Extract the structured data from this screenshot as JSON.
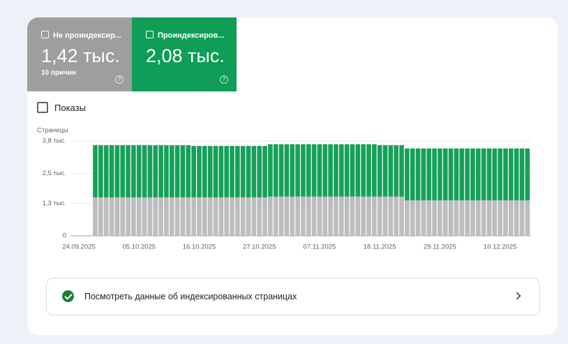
{
  "cards": [
    {
      "value": "1,42 тыс.",
      "note": "10 причин"
    },
    {
      "value": "2,08 тыс."
    }
  ],
  "toggle": "Показы",
  "link": "Посмотреть данные об индексированных страницах",
  "chart_data": {
    "type": "stacked-bar",
    "y_label": "Страницы",
    "categories": [
      "24.09.2025",
      null,
      null,
      null,
      null,
      null,
      null,
      null,
      null,
      null,
      null,
      "05.10.2025",
      null,
      null,
      null,
      null,
      null,
      null,
      null,
      null,
      null,
      null,
      "16.10.2025",
      null,
      null,
      null,
      null,
      null,
      null,
      null,
      null,
      null,
      null,
      "27.10.2025",
      null,
      null,
      null,
      null,
      null,
      null,
      null,
      null,
      null,
      null,
      "07.11.2025",
      null,
      null,
      null,
      null,
      null,
      null,
      null,
      null,
      null,
      null,
      "18.11.2025",
      null,
      null,
      null,
      null,
      null,
      null,
      null,
      null,
      null,
      null,
      "29.11.2025",
      null,
      null,
      null,
      null,
      null,
      null,
      null,
      null,
      null,
      null,
      "10.12.2025",
      null,
      null,
      null,
      null,
      null
    ],
    "series": [
      {
        "name": "Не проиндексир...",
        "color": "#bdbdbd",
        "values": [
          null,
          null,
          null,
          1540,
          1540,
          1540,
          1540,
          1540,
          1540,
          1540,
          1540,
          1540,
          1540,
          1540,
          1540,
          1540,
          1540,
          1540,
          1540,
          1540,
          1540,
          1540,
          1540,
          1540,
          1540,
          1540,
          1540,
          1540,
          1540,
          1540,
          1540,
          1540,
          1540,
          1540,
          1540,
          1570,
          1570,
          1570,
          1570,
          1570,
          1570,
          1570,
          1570,
          1570,
          1570,
          1570,
          1570,
          1570,
          1570,
          1570,
          1570,
          1570,
          1570,
          1570,
          1570,
          1570,
          1570,
          1570,
          1570,
          1570,
          1420,
          1420,
          1420,
          1420,
          1420,
          1420,
          1420,
          1420,
          1420,
          1420,
          1420,
          1420,
          1420,
          1420,
          1420,
          1420,
          1420,
          1420,
          1420,
          1420,
          1420,
          1420,
          1420
        ]
      },
      {
        "name": "Проиндексиров...",
        "color": "#17a05a",
        "values": [
          null,
          null,
          null,
          2090,
          2090,
          2090,
          2090,
          2090,
          2090,
          2090,
          2090,
          2090,
          2090,
          2090,
          2090,
          2090,
          2090,
          2090,
          2090,
          2090,
          2090,
          2060,
          2060,
          2060,
          2060,
          2060,
          2060,
          2060,
          2060,
          2060,
          2060,
          2060,
          2060,
          2060,
          2060,
          2100,
          2100,
          2100,
          2100,
          2100,
          2100,
          2100,
          2100,
          2100,
          2100,
          2100,
          2100,
          2100,
          2100,
          2100,
          2100,
          2100,
          2100,
          2100,
          2100,
          2060,
          2060,
          2060,
          2060,
          2060,
          2080,
          2080,
          2080,
          2080,
          2080,
          2080,
          2080,
          2080,
          2080,
          2080,
          2080,
          2080,
          2080,
          2080,
          2080,
          2080,
          2080,
          2080,
          2080,
          2080,
          2080,
          2080,
          2080
        ]
      }
    ],
    "ylim": [
      0,
      3800
    ],
    "yticks": [
      0,
      {
        "value": 1300,
        "label": "1,3 тыс."
      },
      {
        "value": 2500,
        "label": "2,5 тыс."
      },
      {
        "value": 3800,
        "label": "3,8 тыс."
      }
    ],
    "grid": true
  }
}
